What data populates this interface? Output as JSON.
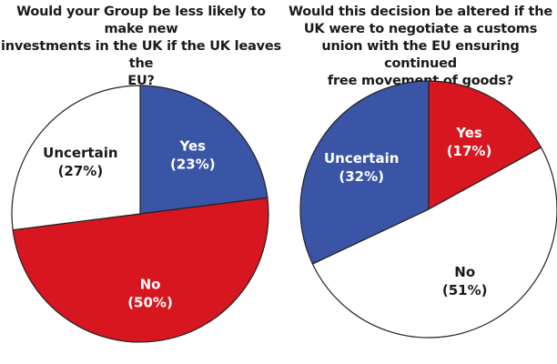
{
  "chart_data": [
    {
      "type": "pie",
      "title": "Would your Group be less likely to make new investments in the UK if the UK leaves the EU?",
      "title_lines": [
        "Would your Group be less likely to make new",
        "investments in the UK if the UK leaves the",
        "EU?"
      ],
      "start_angle_deg": 0,
      "direction": "clockwise",
      "slices": [
        {
          "name": "Yes",
          "value": 23,
          "label": "(23%)",
          "color": "#3a55a5",
          "text_color": "#ffffff"
        },
        {
          "name": "No",
          "value": 50,
          "label": "(50%)",
          "color": "#d7161f",
          "text_color": "#ffffff"
        },
        {
          "name": "Uncertain",
          "value": 27,
          "label": "(27%)",
          "color": "#ffffff",
          "text_color": "#1a1a1a"
        }
      ]
    },
    {
      "type": "pie",
      "title": "Would this decision be altered if the UK were to negotiate a customs union with the EU ensuring continued free movement of goods?",
      "title_lines": [
        "Would this decision be altered if the",
        "UK were to negotiate a customs",
        "union with the EU ensuring continued",
        "free movement of goods?"
      ],
      "start_angle_deg": 0,
      "direction": "clockwise",
      "slices": [
        {
          "name": "Yes",
          "value": 17,
          "label": "(17%)",
          "color": "#d7161f",
          "text_color": "#ffffff"
        },
        {
          "name": "No",
          "value": 51,
          "label": "(51%)",
          "color": "#ffffff",
          "text_color": "#1a1a1a"
        },
        {
          "name": "Uncertain",
          "value": 32,
          "label": "(32%)",
          "color": "#3a55a5",
          "text_color": "#ffffff"
        }
      ]
    }
  ]
}
